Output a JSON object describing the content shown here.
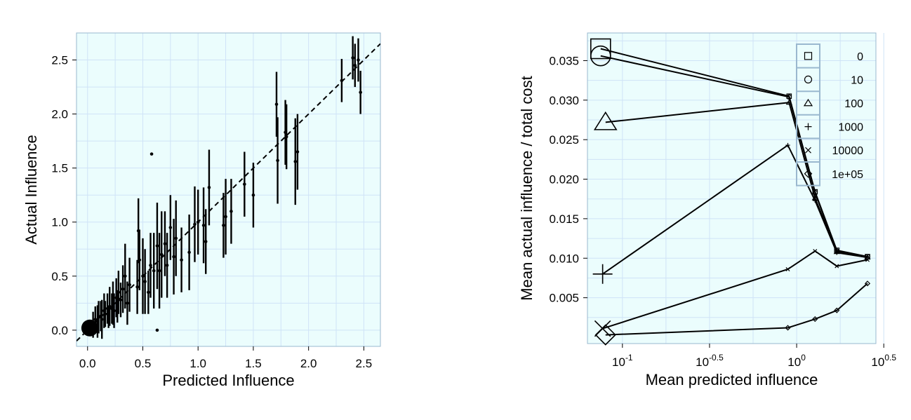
{
  "chart_data": [
    {
      "type": "scatter",
      "title": "",
      "xlabel": "Predicted Influence",
      "ylabel": "Actual Influence",
      "xlim": [
        -0.1,
        2.65
      ],
      "ylim": [
        -0.15,
        2.75
      ],
      "xticks": [
        "0.0",
        "0.5",
        "1.0",
        "1.5",
        "2.0",
        "2.5"
      ],
      "yticks": [
        "0.0",
        "0.5",
        "1.0",
        "1.5",
        "2.0",
        "2.5"
      ],
      "grid": true,
      "background": "#ebfdfd",
      "reference_line": {
        "style": "dashed",
        "slope": 1,
        "intercept": 0
      },
      "large_marker": {
        "x": 0.02,
        "y": 0.02
      },
      "points": [
        [
          0.05,
          0.05,
          0.12
        ],
        [
          0.07,
          0.1,
          0.12
        ],
        [
          0.09,
          0.08,
          0.15
        ],
        [
          0.1,
          0.12,
          0.15
        ],
        [
          0.12,
          0.13,
          0.14
        ],
        [
          0.13,
          0.1,
          0.18
        ],
        [
          0.15,
          0.18,
          0.16
        ],
        [
          0.16,
          0.15,
          0.12
        ],
        [
          0.18,
          0.2,
          0.14
        ],
        [
          0.19,
          0.12,
          0.1
        ],
        [
          0.2,
          0.22,
          0.18
        ],
        [
          0.22,
          0.2,
          0.14
        ],
        [
          0.23,
          0.25,
          0.2
        ],
        [
          0.24,
          0.18,
          0.16
        ],
        [
          0.26,
          0.3,
          0.18
        ],
        [
          0.27,
          0.22,
          0.15
        ],
        [
          0.28,
          0.35,
          0.2
        ],
        [
          0.3,
          0.28,
          0.16
        ],
        [
          0.32,
          0.38,
          0.22
        ],
        [
          0.34,
          0.5,
          0.3
        ],
        [
          0.36,
          0.25,
          0.2
        ],
        [
          0.38,
          0.42,
          0.25
        ],
        [
          0.45,
          0.4,
          0.25
        ],
        [
          0.46,
          0.92,
          0.3
        ],
        [
          0.47,
          0.65,
          0.28
        ],
        [
          0.5,
          0.5,
          0.35
        ],
        [
          0.52,
          0.45,
          0.3
        ],
        [
          0.55,
          0.35,
          0.2
        ],
        [
          0.57,
          0.6,
          0.3
        ],
        [
          0.6,
          0.55,
          0.35
        ],
        [
          0.63,
          0.78,
          0.4
        ],
        [
          0.65,
          0.55,
          0.35
        ],
        [
          0.67,
          0.7,
          0.4
        ],
        [
          0.7,
          0.8,
          0.3
        ],
        [
          0.72,
          0.6,
          0.3
        ],
        [
          0.75,
          0.95,
          0.3
        ],
        [
          0.78,
          0.68,
          0.35
        ],
        [
          0.8,
          0.85,
          0.35
        ],
        [
          0.85,
          0.65,
          0.3
        ],
        [
          0.92,
          0.72,
          0.35
        ],
        [
          0.97,
          0.98,
          0.35
        ],
        [
          1.0,
          1.0,
          0.3
        ],
        [
          1.05,
          0.97,
          0.35
        ],
        [
          1.07,
          0.82,
          0.3
        ],
        [
          1.1,
          1.32,
          0.35
        ],
        [
          1.23,
          0.97,
          0.3
        ],
        [
          1.25,
          1.05,
          0.35
        ],
        [
          1.3,
          1.1,
          0.3
        ],
        [
          1.42,
          1.35,
          0.3
        ],
        [
          1.5,
          1.25,
          0.3
        ],
        [
          1.71,
          2.09,
          0.3
        ],
        [
          1.72,
          1.57,
          0.4
        ],
        [
          1.79,
          1.83,
          0.3
        ],
        [
          1.8,
          1.79,
          0.3
        ],
        [
          1.88,
          1.56,
          0.4
        ],
        [
          1.9,
          1.65,
          0.35
        ],
        [
          2.3,
          2.31,
          0.2
        ],
        [
          2.4,
          2.52,
          0.2
        ],
        [
          2.42,
          2.45,
          0.2
        ],
        [
          2.45,
          2.5,
          0.2
        ],
        [
          2.47,
          2.2,
          0.2
        ],
        [
          0.58,
          1.63,
          0
        ],
        [
          0.63,
          0.0,
          0
        ]
      ]
    },
    {
      "type": "line",
      "title": "",
      "xlabel": "Mean predicted influence",
      "ylabel": "Mean actual influence / total cost",
      "x_scale": "log10",
      "xlim": [
        0.063,
        2.85
      ],
      "ylim": [
        -0.0008,
        0.0385
      ],
      "xticks": [
        "10^-1",
        "10^-0.5",
        "10^0",
        "10^0.5"
      ],
      "yticks": [
        "0.005",
        "0.010",
        "0.015",
        "0.020",
        "0.025",
        "0.030",
        "0.035"
      ],
      "grid": true,
      "background": "#ebfdfd",
      "legend_position": "top-right",
      "series": [
        {
          "name": "0",
          "marker": "square",
          "x": [
            0.075,
            0.905,
            1.275,
            1.7,
            2.55
          ],
          "y": [
            0.0365,
            0.0305,
            0.0184,
            0.011,
            0.0102
          ]
        },
        {
          "name": "10",
          "marker": "circle",
          "x": [
            0.075,
            0.905,
            1.275,
            1.7,
            2.55
          ],
          "y": [
            0.0356,
            0.0304,
            0.0183,
            0.0109,
            0.0102
          ]
        },
        {
          "name": "100",
          "marker": "triangle",
          "x": [
            0.08,
            0.905,
            1.275,
            1.7,
            2.55
          ],
          "y": [
            0.0272,
            0.0297,
            0.0176,
            0.0108,
            0.0101
          ]
        },
        {
          "name": "1000",
          "marker": "plus",
          "x": [
            0.077,
            0.89,
            1.275,
            1.7,
            2.55
          ],
          "y": [
            0.008,
            0.0243,
            0.0173,
            0.0107,
            0.0101
          ]
        },
        {
          "name": "10000",
          "marker": "x",
          "x": [
            0.077,
            0.89,
            1.275,
            1.7,
            2.55
          ],
          "y": [
            0.0011,
            0.0086,
            0.0109,
            0.009,
            0.0098
          ]
        },
        {
          "name": "1e+05",
          "marker": "diamond",
          "x": [
            0.08,
            0.89,
            1.275,
            1.7,
            2.55
          ],
          "y": [
            0.0003,
            0.0012,
            0.0023,
            0.0034,
            0.0068
          ]
        }
      ]
    }
  ]
}
